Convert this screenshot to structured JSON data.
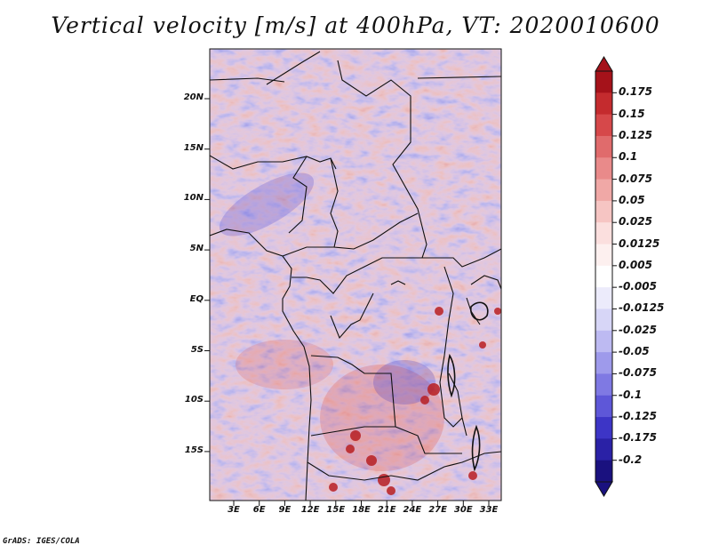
{
  "title": "Vertical velocity [m/s] at 400hPa, VT: 2020010600",
  "credit": "GrADS: IGES/COLA",
  "map": {
    "variable": "Vertical velocity",
    "level": "400hPa",
    "valid_time": "2020010600",
    "units": "m/s",
    "lat_labels": [
      "20N",
      "15N",
      "10N",
      "5N",
      "EQ",
      "5S",
      "10S",
      "15S"
    ],
    "lon_labels": [
      "3E",
      "6E",
      "9E",
      "12E",
      "15E",
      "18E",
      "21E",
      "24E",
      "27E",
      "30E",
      "33E"
    ]
  },
  "colorbar": {
    "levels": [
      "0.175",
      "0.15",
      "0.125",
      "0.1",
      "0.075",
      "0.05",
      "0.025",
      "0.0125",
      "0.005",
      "-0.005",
      "-0.0125",
      "-0.025",
      "-0.05",
      "-0.075",
      "-0.1",
      "-0.125",
      "-0.175",
      "-0.2"
    ],
    "colors": [
      "#a5121a",
      "#c42b2e",
      "#d6484a",
      "#e06b6c",
      "#e98a8a",
      "#f0a8a6",
      "#f6c5c3",
      "#fbdfde",
      "#fdf0ef",
      "#ffffff",
      "#ecebfb",
      "#d7d6f7",
      "#bdbaf2",
      "#9e9aeb",
      "#7f79e3",
      "#5e57d8",
      "#3d35c6",
      "#2a21a6",
      "#1a117f"
    ]
  }
}
